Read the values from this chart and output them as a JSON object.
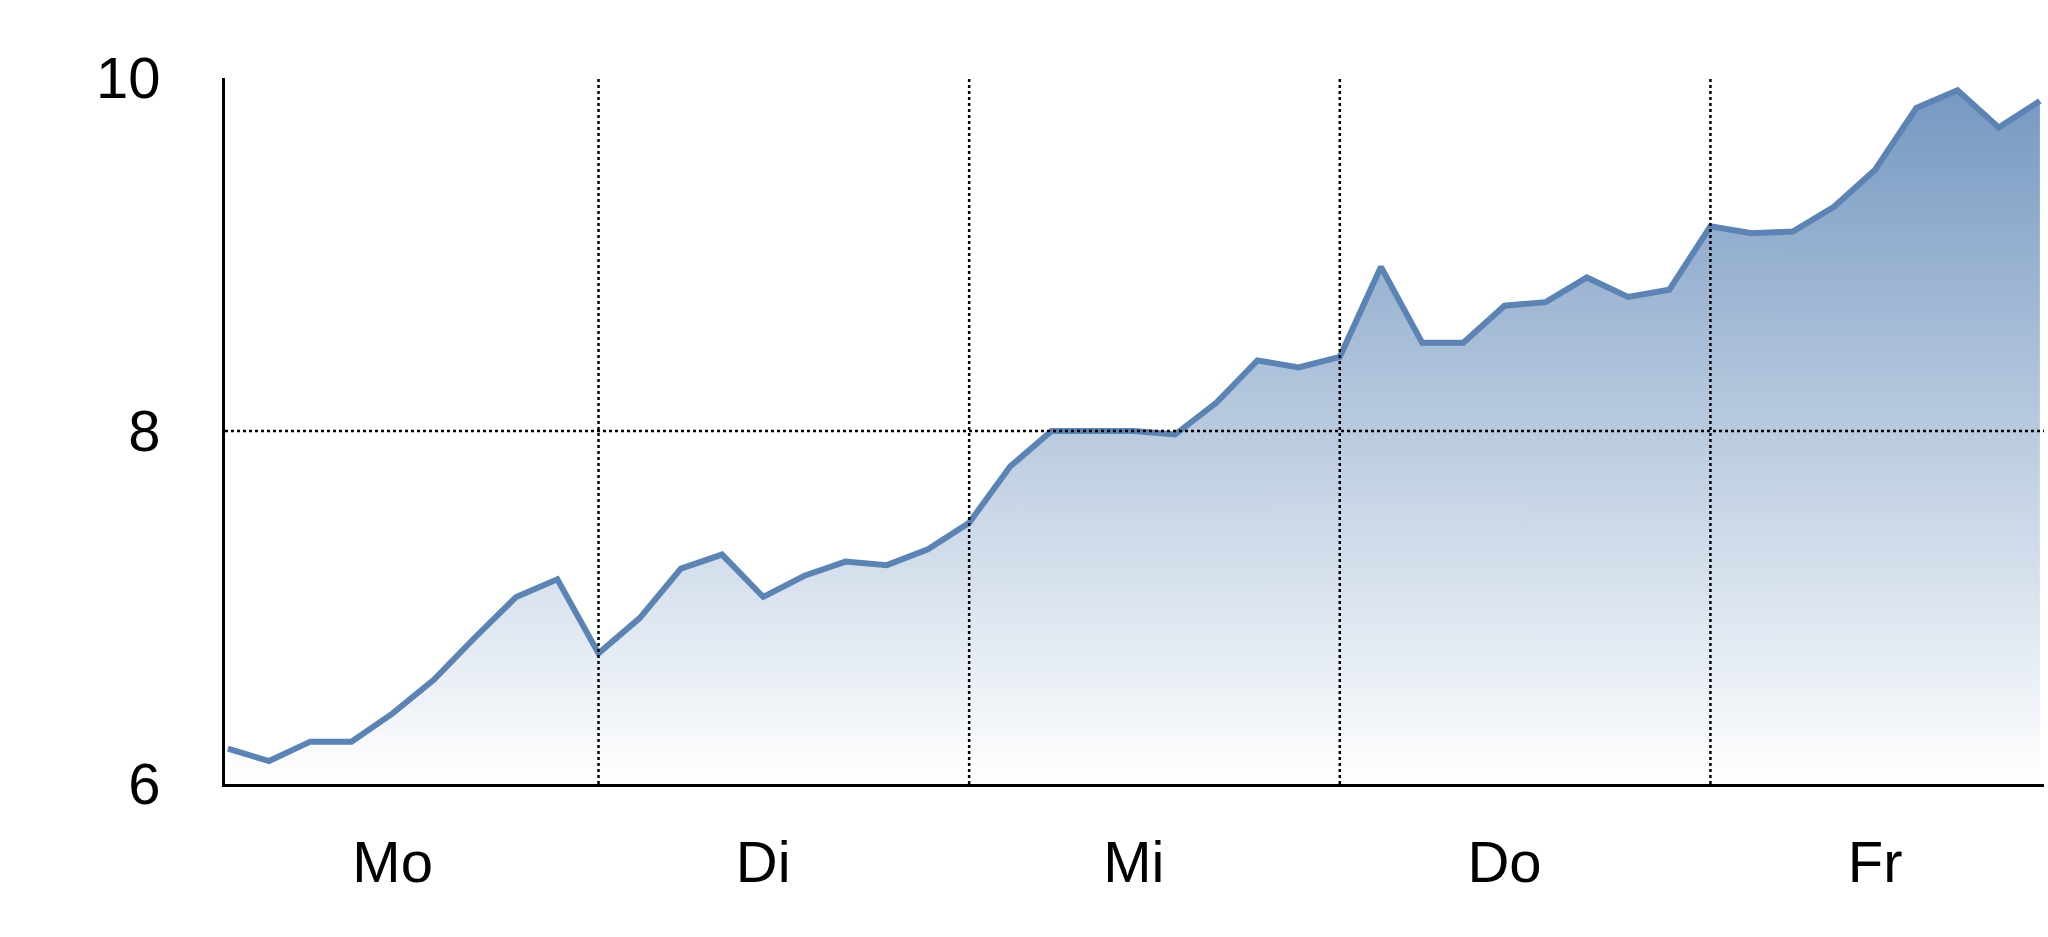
{
  "chart_data": {
    "type": "area",
    "categories": [
      null,
      null,
      null,
      null,
      "Mo",
      null,
      null,
      null,
      null,
      null,
      null,
      null,
      null,
      "Di",
      null,
      null,
      null,
      null,
      null,
      null,
      null,
      null,
      "Mi",
      null,
      null,
      null,
      null,
      null,
      null,
      null,
      null,
      "Do",
      null,
      null,
      null,
      null,
      null,
      null,
      null,
      null,
      "Fr",
      null,
      null,
      null,
      null
    ],
    "series": [
      {
        "color": "#5b84b5",
        "values": [
          6.2,
          6.13,
          6.24,
          6.24,
          6.4,
          6.59,
          6.83,
          7.06,
          7.16,
          6.74,
          6.94,
          7.22,
          7.3,
          7.06,
          7.18,
          7.26,
          7.24,
          7.33,
          7.48,
          7.8,
          8.0,
          8.0,
          8.0,
          7.98,
          8.16,
          8.4,
          8.36,
          8.42,
          8.93,
          8.5,
          8.5,
          8.71,
          8.73,
          8.87,
          8.76,
          8.8,
          9.16,
          9.12,
          9.13,
          9.27,
          9.48,
          9.83,
          9.93,
          9.72,
          9.87
        ]
      }
    ],
    "ylim": [
      6,
      10
    ],
    "yticks": [
      6,
      8,
      10
    ],
    "ref_lines": [
      {
        "axis": "y",
        "value": 8,
        "line_style": "dotted",
        "color": "#000000"
      }
    ],
    "grid": "x",
    "marker": "none",
    "line_style": "solid"
  }
}
